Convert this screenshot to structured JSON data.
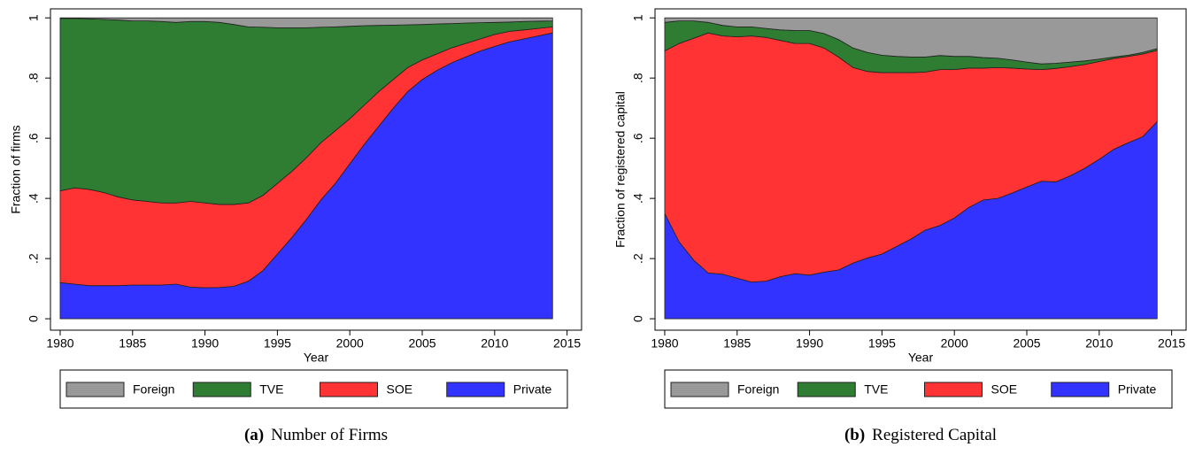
{
  "chart_data": [
    {
      "type": "area",
      "stacked": true,
      "label": "(a)",
      "caption": "Number of Firms",
      "xlabel": "Year",
      "ylabel": "Fraction of firms",
      "x": [
        1980,
        1981,
        1982,
        1983,
        1984,
        1985,
        1986,
        1987,
        1988,
        1989,
        1990,
        1991,
        1992,
        1993,
        1994,
        1995,
        1996,
        1997,
        1998,
        1999,
        2000,
        2001,
        2002,
        2003,
        2004,
        2005,
        2006,
        2007,
        2008,
        2009,
        2010,
        2011,
        2012,
        2013,
        2014
      ],
      "series": [
        {
          "name": "Foreign",
          "color": "#999999",
          "values": [
            0.002,
            0.002,
            0.003,
            0.005,
            0.007,
            0.01,
            0.01,
            0.012,
            0.015,
            0.012,
            0.012,
            0.015,
            0.022,
            0.03,
            0.031,
            0.033,
            0.033,
            0.033,
            0.031,
            0.03,
            0.028,
            0.026,
            0.025,
            0.024,
            0.023,
            0.022,
            0.02,
            0.019,
            0.017,
            0.016,
            0.015,
            0.014,
            0.012,
            0.011,
            0.01
          ]
        },
        {
          "name": "TVE",
          "color": "#2e7d32",
          "values": [
            0.573,
            0.563,
            0.567,
            0.575,
            0.588,
            0.595,
            0.6,
            0.603,
            0.6,
            0.598,
            0.603,
            0.605,
            0.598,
            0.585,
            0.559,
            0.517,
            0.477,
            0.432,
            0.384,
            0.345,
            0.307,
            0.264,
            0.22,
            0.181,
            0.142,
            0.118,
            0.1,
            0.081,
            0.068,
            0.054,
            0.04,
            0.031,
            0.028,
            0.024,
            0.02
          ]
        },
        {
          "name": "SOE",
          "color": "#ff3333",
          "values": [
            0.305,
            0.32,
            0.32,
            0.31,
            0.295,
            0.283,
            0.278,
            0.273,
            0.27,
            0.285,
            0.282,
            0.276,
            0.272,
            0.26,
            0.25,
            0.235,
            0.22,
            0.205,
            0.19,
            0.175,
            0.15,
            0.13,
            0.115,
            0.095,
            0.08,
            0.065,
            0.055,
            0.05,
            0.045,
            0.04,
            0.04,
            0.035,
            0.03,
            0.025,
            0.02
          ]
        },
        {
          "name": "Private",
          "color": "#3333ff",
          "values": [
            0.12,
            0.115,
            0.11,
            0.11,
            0.11,
            0.112,
            0.112,
            0.112,
            0.115,
            0.105,
            0.103,
            0.104,
            0.108,
            0.125,
            0.16,
            0.215,
            0.27,
            0.33,
            0.395,
            0.45,
            0.515,
            0.58,
            0.64,
            0.7,
            0.755,
            0.795,
            0.825,
            0.85,
            0.87,
            0.89,
            0.905,
            0.92,
            0.93,
            0.94,
            0.95
          ]
        }
      ],
      "xlim": [
        1979.33,
        2016
      ],
      "xticks": [
        1980,
        1985,
        1990,
        1995,
        2000,
        2005,
        2010,
        2015
      ],
      "ylim": [
        -0.038,
        1.03
      ],
      "yticks": [
        0,
        {
          "value": 0.2,
          "label": ".2"
        },
        {
          "value": 0.4,
          "label": ".4"
        },
        {
          "value": 0.6,
          "label": ".6"
        },
        {
          "value": 0.8,
          "label": ".8"
        },
        1
      ]
    },
    {
      "type": "area",
      "stacked": true,
      "label": "(b)",
      "caption": "Registered Capital",
      "xlabel": "Year",
      "ylabel": "Fraction of registered capital",
      "x": [
        1980,
        1981,
        1982,
        1983,
        1984,
        1985,
        1986,
        1987,
        1988,
        1989,
        1990,
        1991,
        1992,
        1993,
        1994,
        1995,
        1996,
        1997,
        1998,
        1999,
        2000,
        2001,
        2002,
        2003,
        2004,
        2005,
        2006,
        2007,
        2008,
        2009,
        2010,
        2011,
        2012,
        2013,
        2014
      ],
      "series": [
        {
          "name": "Foreign",
          "color": "#999999",
          "values": [
            0.015,
            0.01,
            0.01,
            0.015,
            0.025,
            0.03,
            0.03,
            0.035,
            0.04,
            0.042,
            0.042,
            0.052,
            0.072,
            0.1,
            0.115,
            0.124,
            0.128,
            0.13,
            0.13,
            0.125,
            0.128,
            0.128,
            0.132,
            0.134,
            0.14,
            0.147,
            0.153,
            0.151,
            0.147,
            0.143,
            0.137,
            0.13,
            0.124,
            0.115,
            0.102
          ]
        },
        {
          "name": "TVE",
          "color": "#2e7d32",
          "values": [
            0.095,
            0.075,
            0.058,
            0.035,
            0.035,
            0.033,
            0.03,
            0.03,
            0.035,
            0.043,
            0.043,
            0.048,
            0.058,
            0.065,
            0.063,
            0.058,
            0.054,
            0.052,
            0.05,
            0.047,
            0.044,
            0.039,
            0.035,
            0.031,
            0.027,
            0.023,
            0.019,
            0.017,
            0.015,
            0.012,
            0.008,
            0.005,
            0.004,
            0.005,
            0.006
          ]
        },
        {
          "name": "SOE",
          "color": "#ff3333",
          "values": [
            0.54,
            0.66,
            0.737,
            0.798,
            0.792,
            0.802,
            0.818,
            0.81,
            0.785,
            0.765,
            0.77,
            0.745,
            0.708,
            0.65,
            0.62,
            0.603,
            0.578,
            0.553,
            0.525,
            0.518,
            0.493,
            0.463,
            0.438,
            0.435,
            0.415,
            0.392,
            0.371,
            0.377,
            0.363,
            0.345,
            0.325,
            0.302,
            0.287,
            0.275,
            0.237
          ]
        },
        {
          "name": "Private",
          "color": "#3333ff",
          "values": [
            0.35,
            0.255,
            0.195,
            0.152,
            0.148,
            0.135,
            0.122,
            0.125,
            0.14,
            0.15,
            0.145,
            0.155,
            0.162,
            0.185,
            0.202,
            0.215,
            0.24,
            0.265,
            0.295,
            0.31,
            0.335,
            0.37,
            0.395,
            0.4,
            0.418,
            0.438,
            0.457,
            0.455,
            0.475,
            0.5,
            0.53,
            0.563,
            0.585,
            0.605,
            0.655
          ]
        }
      ],
      "xlim": [
        1979.33,
        2016
      ],
      "xticks": [
        1980,
        1985,
        1990,
        1995,
        2000,
        2005,
        2010,
        2015
      ],
      "ylim": [
        -0.038,
        1.03
      ],
      "yticks": [
        0,
        {
          "value": 0.2,
          "label": ".2"
        },
        {
          "value": 0.4,
          "label": ".4"
        },
        {
          "value": 0.6,
          "label": ".6"
        },
        {
          "value": 0.8,
          "label": ".8"
        },
        1
      ]
    }
  ]
}
